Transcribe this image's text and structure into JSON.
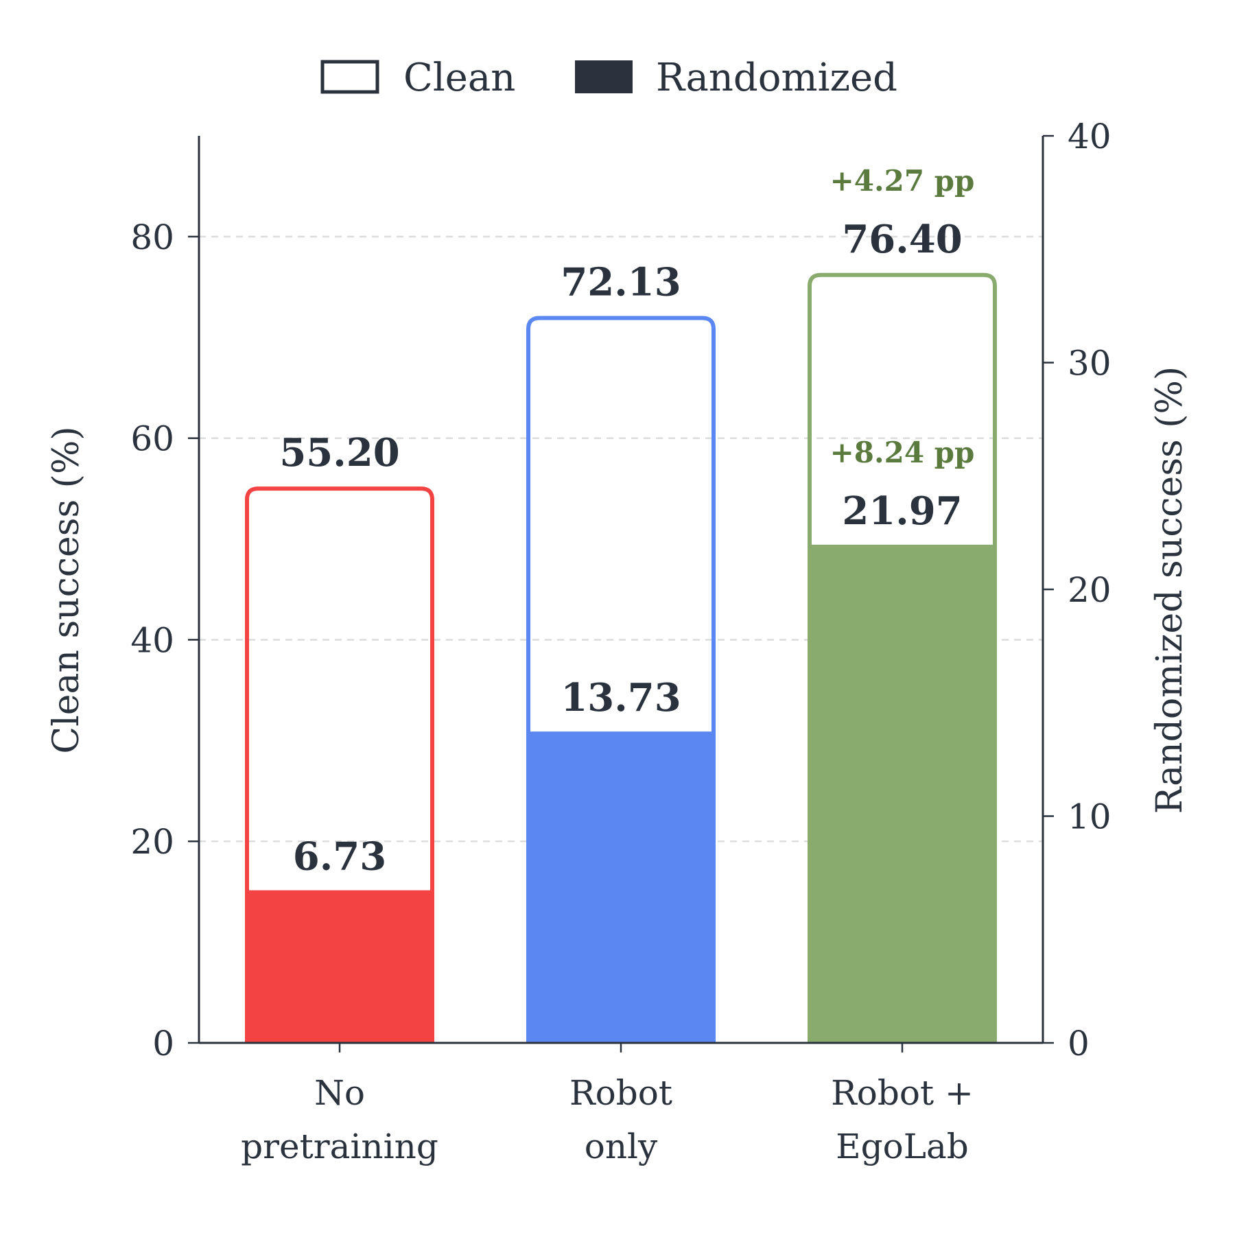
{
  "chart_data": {
    "type": "bar",
    "categories": [
      [
        "No",
        "pretraining"
      ],
      [
        "Robot",
        "only"
      ],
      [
        "Robot +",
        "EgoLab"
      ]
    ],
    "series": [
      {
        "name": "Clean",
        "axis": "left",
        "values": [
          55.2,
          72.13,
          76.4
        ]
      },
      {
        "name": "Randomized",
        "axis": "right",
        "values": [
          6.73,
          13.73,
          21.97
        ]
      }
    ],
    "value_labels": {
      "clean": [
        "55.20",
        "72.13",
        "76.40"
      ],
      "randomized": [
        "6.73",
        "13.73",
        "21.97"
      ]
    },
    "annotations": [
      {
        "category_index": 2,
        "series": "Clean",
        "text": "+4.27 pp"
      },
      {
        "category_index": 2,
        "series": "Randomized",
        "text": "+8.24 pp"
      }
    ],
    "bar_colors": [
      "#f44343",
      "#5b87f2",
      "#8aab6e"
    ],
    "annotation_color": "#5a7a3e",
    "text_color": "#2a323d",
    "ylabel_left": "Clean success (%)",
    "ylabel_right": "Randomized success (%)",
    "ylim_left": [
      0,
      90
    ],
    "ylim_right": [
      0,
      40
    ],
    "yticks_left": [
      0,
      20,
      40,
      60,
      80
    ],
    "yticks_right": [
      0,
      10,
      20,
      30,
      40
    ],
    "grid": "horizontal dashed",
    "legend": {
      "placement": "top-center",
      "entries": [
        "Clean",
        "Randomized"
      ]
    }
  }
}
